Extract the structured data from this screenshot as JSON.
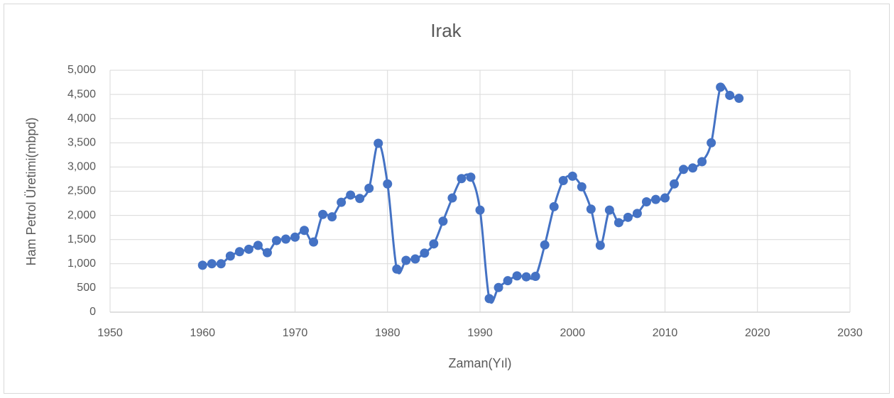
{
  "chart_data": {
    "type": "line",
    "smooth": true,
    "markers": true,
    "title": "Irak",
    "xlabel": "Zaman(Yıl)",
    "ylabel": "Ham Petrol Üretimi(mbpd)",
    "x": [
      1960,
      1961,
      1962,
      1963,
      1964,
      1965,
      1966,
      1967,
      1968,
      1969,
      1970,
      1971,
      1972,
      1973,
      1974,
      1975,
      1976,
      1977,
      1978,
      1979,
      1980,
      1981,
      1982,
      1983,
      1984,
      1985,
      1986,
      1987,
      1988,
      1989,
      1990,
      1991,
      1992,
      1993,
      1994,
      1995,
      1996,
      1997,
      1998,
      1999,
      2000,
      2001,
      2002,
      2003,
      2004,
      2005,
      2006,
      2007,
      2008,
      2009,
      2010,
      2011,
      2012,
      2013,
      2014,
      2015,
      2016,
      2017,
      2018
    ],
    "series": [
      {
        "color": "#4472c4",
        "values": [
          970,
          1000,
          1000,
          1160,
          1250,
          1300,
          1380,
          1230,
          1480,
          1510,
          1550,
          1690,
          1450,
          2020,
          1970,
          2270,
          2420,
          2350,
          2560,
          3490,
          2650,
          890,
          1070,
          1100,
          1220,
          1410,
          1880,
          2360,
          2760,
          2790,
          2110,
          280,
          510,
          650,
          750,
          730,
          740,
          1390,
          2180,
          2720,
          2810,
          2590,
          2130,
          1380,
          2110,
          1850,
          1960,
          2040,
          2280,
          2330,
          2360,
          2650,
          2950,
          2980,
          3110,
          3500,
          4650,
          4480,
          4420
        ]
      }
    ],
    "xlim": [
      1950,
      2030
    ],
    "xticks": [
      1950,
      1960,
      1970,
      1980,
      1990,
      2000,
      2010,
      2020,
      2030
    ],
    "ylim": [
      0,
      5000
    ],
    "yticks": [
      0,
      500,
      {
        "value": 1000,
        "label": "1,000"
      },
      {
        "value": 1500,
        "label": "1,500"
      },
      {
        "value": 2000,
        "label": "2,000"
      },
      {
        "value": 2500,
        "label": "2,500"
      },
      {
        "value": 3000,
        "label": "3,000"
      },
      {
        "value": 3500,
        "label": "3,500"
      },
      {
        "value": 4000,
        "label": "4,000"
      },
      {
        "value": 4500,
        "label": "4,500"
      },
      {
        "value": 5000,
        "label": "5,000"
      }
    ],
    "grid": true
  }
}
